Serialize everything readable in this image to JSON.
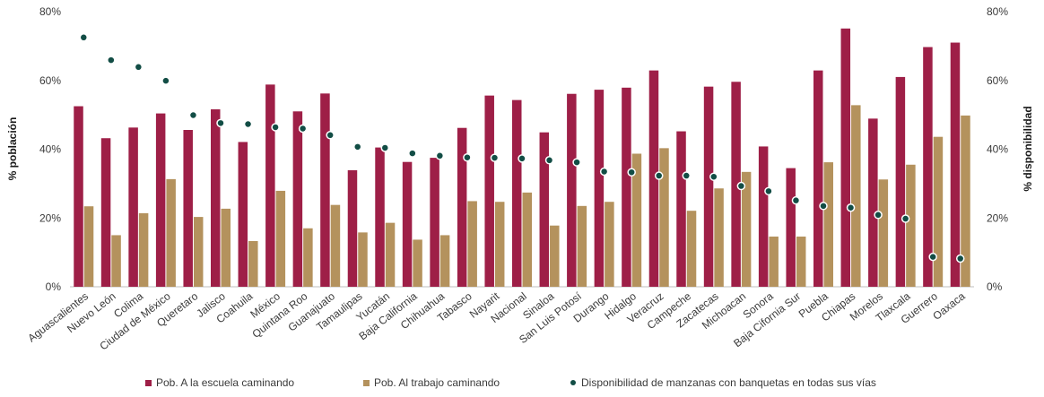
{
  "chart_data": {
    "type": "bar",
    "categories": [
      "Aguascalientes",
      "Nuevo León",
      "Colima",
      "Ciudad de México",
      "Queretaro",
      "Jalisco",
      "Coahuila",
      "México",
      "Quintana Roo",
      "Guanajuato",
      "Tamaulipas",
      "Yucatán",
      "Baja California",
      "Chihuahua",
      "Tabasco",
      "Nayarit",
      "Nacional",
      "Sinaloa",
      "San Luis Potosí",
      "Durango",
      "Hidalgo",
      "Veracruz",
      "Campeche",
      "Zacatecas",
      "Michoacan",
      "Sonora",
      "Baja Cifornia Sur",
      "Puebla",
      "Chiapas",
      "Morelos",
      "Tlaxcala",
      "Guerrero",
      "Oaxaca"
    ],
    "series": [
      {
        "name": "Pob. A la escuela caminando",
        "type": "bar",
        "axis": "left",
        "color": "#9e1f47",
        "values": [
          52.5,
          43.2,
          46.3,
          50.4,
          45.6,
          51.6,
          42.1,
          58.8,
          51.0,
          56.2,
          33.9,
          40.5,
          36.3,
          37.5,
          46.2,
          55.6,
          54.3,
          44.9,
          56.1,
          57.3,
          57.9,
          62.9,
          45.2,
          58.2,
          59.6,
          40.8,
          34.5,
          62.9,
          75.1,
          48.9,
          61.0,
          69.7,
          71.0
        ]
      },
      {
        "name": "Pob. Al trabajo caminando",
        "type": "bar",
        "axis": "left",
        "color": "#b4925d",
        "values": [
          23.4,
          15.0,
          21.4,
          31.3,
          20.3,
          22.7,
          13.3,
          27.9,
          17.0,
          23.8,
          15.8,
          18.6,
          13.7,
          15.0,
          24.9,
          24.7,
          27.4,
          17.8,
          23.5,
          24.7,
          38.7,
          40.3,
          22.1,
          28.6,
          33.4,
          14.6,
          14.6,
          36.2,
          52.8,
          31.2,
          35.5,
          43.6,
          49.8
        ]
      },
      {
        "name": "Disponibilidad de manzanas con banquetas en todas sus vías",
        "type": "scatter",
        "axis": "right",
        "color": "#124d45",
        "values": [
          72.5,
          65.9,
          63.9,
          59.9,
          49.9,
          47.6,
          47.3,
          46.4,
          46.0,
          44.1,
          40.7,
          40.4,
          38.8,
          38.1,
          37.6,
          37.5,
          37.3,
          36.8,
          36.2,
          33.5,
          33.3,
          32.3,
          32.3,
          32.0,
          29.3,
          27.8,
          25.1,
          23.5,
          23.0,
          20.9,
          19.8,
          8.7,
          8.2
        ]
      }
    ],
    "ylabel": "% población",
    "y2label": "% disponibilidad",
    "ylim": [
      0,
      80
    ],
    "y2lim": [
      0,
      80
    ],
    "yticks": [
      "0%",
      "20%",
      "40%",
      "60%",
      "80%"
    ],
    "y2ticks": [
      "0%",
      "20%",
      "40%",
      "60%",
      "80%"
    ],
    "grid": false,
    "legend": "bottom"
  }
}
